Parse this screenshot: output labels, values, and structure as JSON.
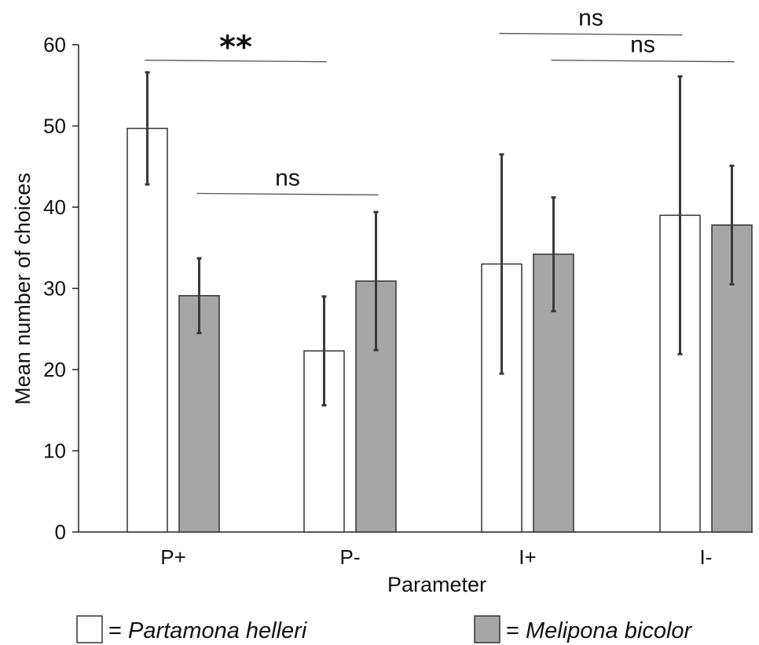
{
  "chart_data": {
    "type": "bar",
    "title": "",
    "xlabel": "Parameter",
    "ylabel": "Mean number of choices",
    "ylim": [
      0,
      60
    ],
    "yticks": [
      0,
      10,
      20,
      30,
      40,
      50,
      60
    ],
    "categories": [
      "P+",
      "P-",
      "I+",
      "I-"
    ],
    "series": [
      {
        "name": "Partamona helleri",
        "color": "#ffffff",
        "values": [
          49.7,
          22.3,
          33.0,
          39.0
        ],
        "error_low": [
          42.8,
          15.6,
          19.5,
          21.9
        ],
        "error_high": [
          56.6,
          29.0,
          46.5,
          56.1
        ]
      },
      {
        "name": "Melipona bicolor",
        "color": "#a6a6a6",
        "values": [
          29.1,
          30.9,
          34.2,
          37.8
        ],
        "error_low": [
          24.5,
          22.4,
          27.2,
          30.5
        ],
        "error_high": [
          33.7,
          39.4,
          41.2,
          45.1
        ]
      }
    ],
    "significance": [
      {
        "label": "**",
        "from_category": 0,
        "from_series": 0,
        "to_category": 1,
        "to_series": 0,
        "level": 58.0
      },
      {
        "label": "ns",
        "from_category": 0,
        "from_series": 1,
        "to_category": 1,
        "to_series": 1,
        "level": 41.6
      },
      {
        "label": "ns",
        "from_category": 2,
        "from_series": 0,
        "to_category": 3,
        "to_series": 0,
        "level": 61.3
      },
      {
        "label": "ns",
        "from_category": 2,
        "from_series": 1,
        "to_category": 3,
        "to_series": 1,
        "level": 58.0
      }
    ],
    "legend": {
      "placement": "bottom",
      "items": [
        {
          "prefix": "= ",
          "label": "Partamona helleri"
        },
        {
          "prefix": "= ",
          "label": "Melipona bicolor"
        }
      ]
    },
    "grid": false
  }
}
